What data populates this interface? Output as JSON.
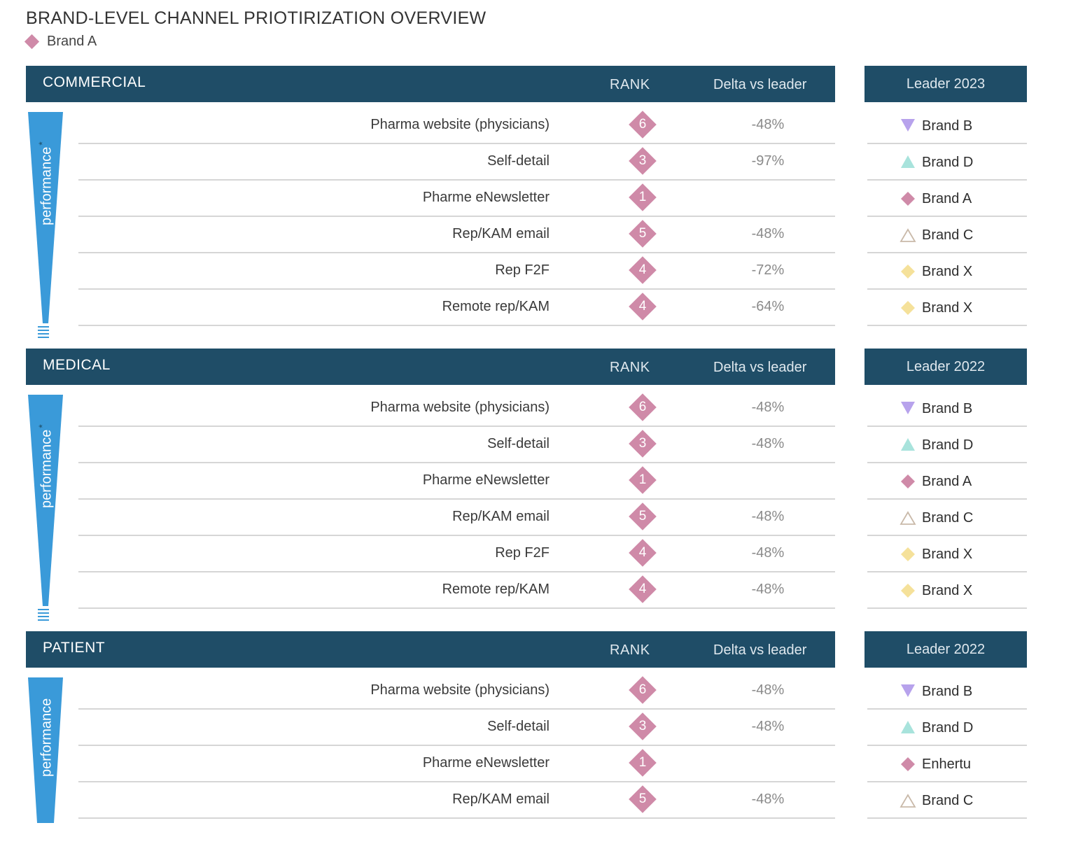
{
  "title": "BRAND-LEVEL CHANNEL PRIOTIRIZATION OVERVIEW",
  "legend": {
    "label": "Brand A",
    "marker": "diamond",
    "color": "#cf8aa8"
  },
  "columns": {
    "rank": "RANK",
    "delta": "Delta vs leader"
  },
  "funnel_label": "performance",
  "colors": {
    "header_bg": "#1f4d67",
    "rank_diamond": "#cf8aa8",
    "funnel_blue": "#3a9ad9",
    "brand_b": "#b7a2ec",
    "brand_d": "#a8e3dc",
    "brand_a": "#cf8aa8",
    "brand_c": "#c9b9a9",
    "brand_x": "#f5e19a"
  },
  "sections": [
    {
      "name": "COMMERCIAL",
      "asterisk": "*",
      "leader_header": "Leader 2023",
      "rows": [
        {
          "channel": "Pharma website (physicians)",
          "rank": "6",
          "delta": "-48%"
        },
        {
          "channel": "Self-detail",
          "rank": "3",
          "delta": "-97%"
        },
        {
          "channel": "Pharme eNewsletter",
          "rank": "1",
          "delta": ""
        },
        {
          "channel": "Rep/KAM email",
          "rank": "5",
          "delta": "-48%"
        },
        {
          "channel": "Rep F2F",
          "rank": "4",
          "delta": "-72%"
        },
        {
          "channel": "Remote rep/KAM",
          "rank": "4",
          "delta": "-64%"
        }
      ],
      "leaders": [
        {
          "brand": "Brand B",
          "marker": "triangle-down-icon"
        },
        {
          "brand": "Brand D",
          "marker": "triangle-up-icon"
        },
        {
          "brand": "Brand A",
          "marker": "diamond-icon"
        },
        {
          "brand": "Brand C",
          "marker": "triangle-outline-icon"
        },
        {
          "brand": "Brand X",
          "marker": "diamond-yellow-icon"
        },
        {
          "brand": "Brand X",
          "marker": "diamond-yellow-icon"
        }
      ]
    },
    {
      "name": "MEDICAL",
      "asterisk": "*",
      "leader_header": "Leader 2022",
      "rows": [
        {
          "channel": "Pharma website (physicians)",
          "rank": "6",
          "delta": "-48%"
        },
        {
          "channel": "Self-detail",
          "rank": "3",
          "delta": "-48%"
        },
        {
          "channel": "Pharme eNewsletter",
          "rank": "1",
          "delta": ""
        },
        {
          "channel": "Rep/KAM email",
          "rank": "5",
          "delta": "-48%"
        },
        {
          "channel": "Rep F2F",
          "rank": "4",
          "delta": "-48%"
        },
        {
          "channel": "Remote rep/KAM",
          "rank": "4",
          "delta": "-48%"
        }
      ],
      "leaders": [
        {
          "brand": "Brand B",
          "marker": "triangle-down-icon"
        },
        {
          "brand": "Brand D",
          "marker": "triangle-up-icon"
        },
        {
          "brand": "Brand A",
          "marker": "diamond-icon"
        },
        {
          "brand": "Brand C",
          "marker": "triangle-outline-icon"
        },
        {
          "brand": "Brand X",
          "marker": "diamond-yellow-icon"
        },
        {
          "brand": "Brand X",
          "marker": "diamond-yellow-icon"
        }
      ]
    },
    {
      "name": "PATIENT",
      "asterisk": "",
      "leader_header": "Leader 2022",
      "rows": [
        {
          "channel": "Pharma website (physicians)",
          "rank": "6",
          "delta": "-48%"
        },
        {
          "channel": "Self-detail",
          "rank": "3",
          "delta": "-48%"
        },
        {
          "channel": "Pharme eNewsletter",
          "rank": "1",
          "delta": ""
        },
        {
          "channel": "Rep/KAM email",
          "rank": "5",
          "delta": "-48%"
        }
      ],
      "leaders": [
        {
          "brand": "Brand B",
          "marker": "triangle-down-icon"
        },
        {
          "brand": "Brand D",
          "marker": "triangle-up-icon"
        },
        {
          "brand": "Enhertu",
          "marker": "diamond-icon"
        },
        {
          "brand": "Brand C",
          "marker": "triangle-outline-icon"
        }
      ]
    }
  ]
}
